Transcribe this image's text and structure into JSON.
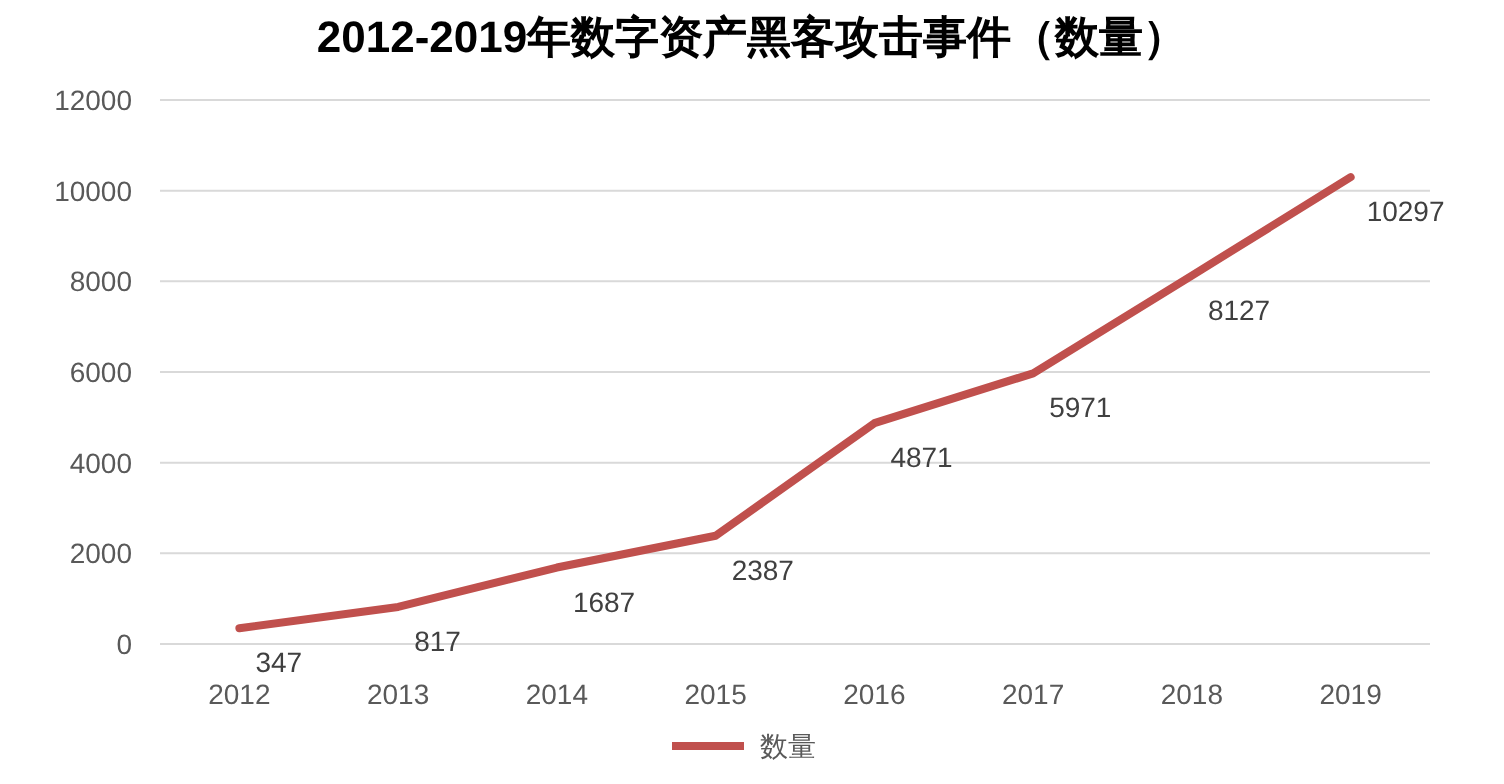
{
  "chart_data": {
    "type": "line",
    "title": "2012-2019年数字资产黑客攻击事件（数量）",
    "categories": [
      "2012",
      "2013",
      "2014",
      "2015",
      "2016",
      "2017",
      "2018",
      "2019"
    ],
    "series": [
      {
        "name": "数量",
        "color": "#c0504d",
        "values": [
          347,
          817,
          1687,
          2387,
          4871,
          5971,
          8127,
          10297
        ]
      }
    ],
    "ylim": [
      0,
      12000
    ],
    "yticks": [
      0,
      2000,
      4000,
      6000,
      8000,
      10000,
      12000
    ],
    "grid": "y",
    "legend": "bottom",
    "data_labels": true
  }
}
